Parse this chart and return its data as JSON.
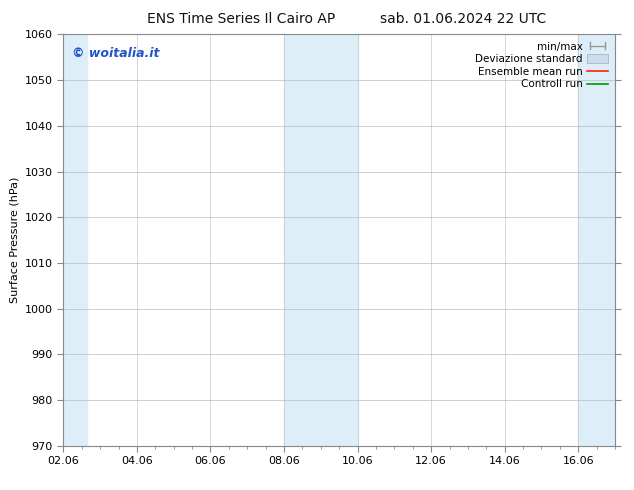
{
  "title_left": "ENS Time Series Il Cairo AP",
  "title_right": "sab. 01.06.2024 22 UTC",
  "ylabel": "Surface Pressure (hPa)",
  "ylim": [
    970,
    1060
  ],
  "yticks": [
    970,
    980,
    990,
    1000,
    1010,
    1020,
    1030,
    1040,
    1050,
    1060
  ],
  "xtick_labels": [
    "02.06",
    "04.06",
    "06.06",
    "08.06",
    "10.06",
    "12.06",
    "14.06",
    "16.06"
  ],
  "xtick_positions": [
    0,
    2,
    4,
    6,
    8,
    10,
    12,
    14
  ],
  "xlim": [
    0,
    15
  ],
  "shaded_regions": [
    {
      "x_start": 0,
      "x_end": 0.65,
      "color": "#ddeef8"
    },
    {
      "x_start": 6,
      "x_end": 8,
      "color": "#ddeef8"
    },
    {
      "x_start": 14,
      "x_end": 15,
      "color": "#ddeef8"
    }
  ],
  "watermark_text": "© woitalia.it",
  "watermark_color": "#2255cc",
  "legend_labels": [
    "min/max",
    "Deviazione standard",
    "Ensemble mean run",
    "Controll run"
  ],
  "legend_colors": [
    "#999999",
    "#c8ddf0",
    "#ff2200",
    "#009900"
  ],
  "background_color": "#ffffff",
  "plot_bg_color": "#ffffff",
  "spine_color": "#888888",
  "grid_color": "#bbbbbb",
  "title_fontsize": 10,
  "tick_fontsize": 8,
  "ylabel_fontsize": 8,
  "legend_fontsize": 7.5,
  "watermark_fontsize": 9
}
